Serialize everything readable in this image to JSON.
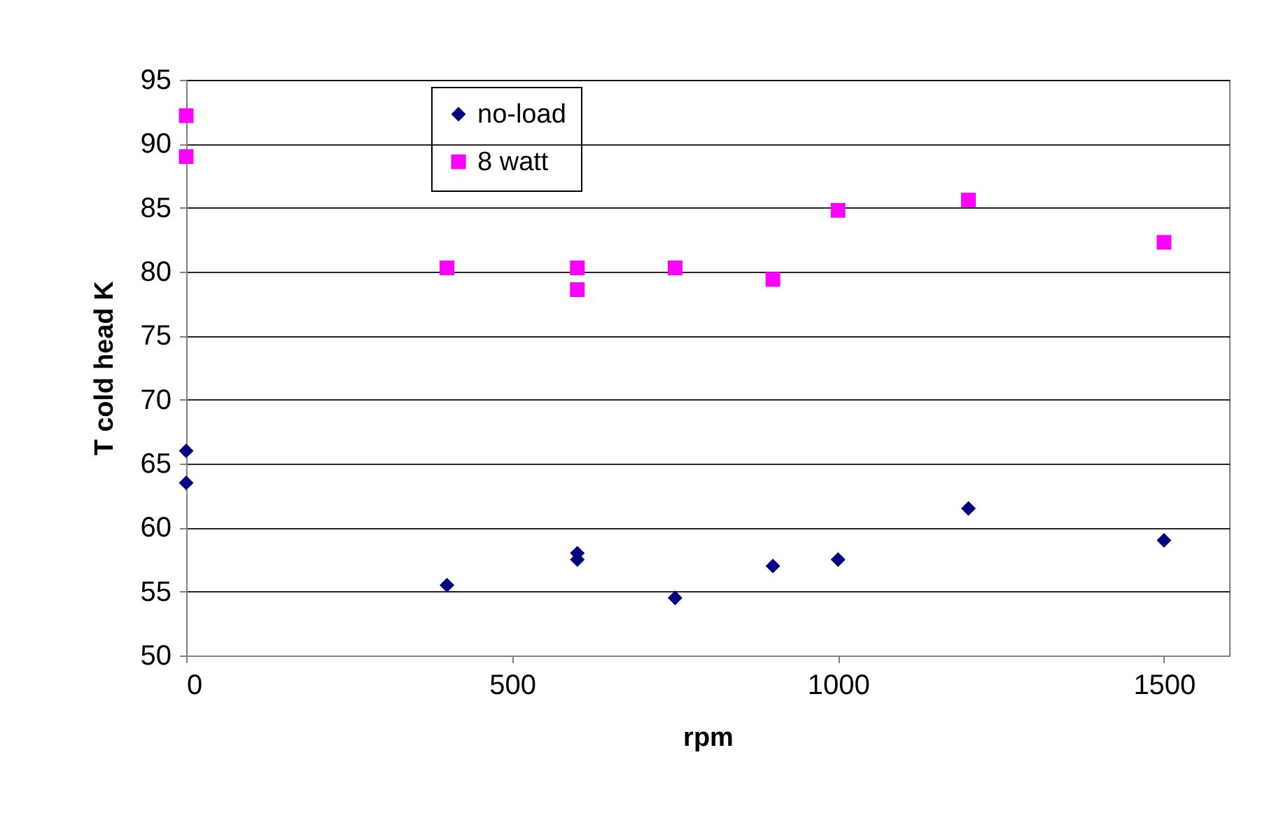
{
  "chart_data": {
    "type": "scatter",
    "xlabel": "rpm",
    "ylabel": "T cold head   K",
    "xlim": [
      0,
      1600
    ],
    "xticks": [
      0,
      500,
      1000,
      1500
    ],
    "ylim": [
      50,
      95
    ],
    "yticks": [
      50,
      55,
      60,
      65,
      70,
      75,
      80,
      85,
      90,
      95
    ],
    "grid": "y",
    "legend": "top left",
    "series": [
      {
        "name": "no-load",
        "color": "#000080",
        "marker": "diamond",
        "x": [
          0,
          0,
          400,
          600,
          600,
          750,
          900,
          1000,
          1200,
          1500
        ],
        "values": [
          66,
          63.5,
          55.5,
          58,
          57.5,
          54.5,
          57,
          57.5,
          61.5,
          59
        ]
      },
      {
        "name": "8 watt",
        "color": "#ff00ff",
        "marker": "square",
        "x": [
          0,
          0,
          400,
          600,
          600,
          750,
          900,
          1000,
          1200,
          1500
        ],
        "values": [
          92.2,
          89,
          80.3,
          80.3,
          78.6,
          80.3,
          79.4,
          84.8,
          85.6,
          82.3
        ]
      }
    ]
  }
}
